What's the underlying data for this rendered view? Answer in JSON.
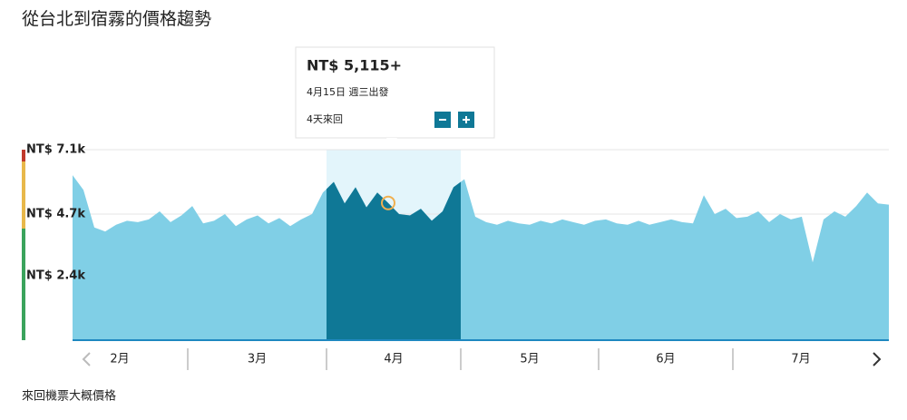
{
  "header": {
    "title": "從台北到宿霧的價格趨勢"
  },
  "chart_data": {
    "type": "area",
    "values": [
      6150,
      5600,
      4200,
      4050,
      4300,
      4450,
      4400,
      4500,
      4800,
      4400,
      4650,
      5000,
      4350,
      4450,
      4700,
      4250,
      4500,
      4650,
      4350,
      4550,
      4250,
      4500,
      4700,
      5500,
      5900,
      5100,
      5700,
      4950,
      5500,
      5115,
      4700,
      4650,
      4900,
      4450,
      4800,
      5700,
      6000,
      4600,
      4400,
      4300,
      4450,
      4350,
      4300,
      4450,
      4350,
      4500,
      4400,
      4300,
      4450,
      4500,
      4350,
      4300,
      4450,
      4300,
      4400,
      4500,
      4400,
      4350,
      5400,
      4700,
      4900,
      4550,
      4600,
      4800,
      4400,
      4700,
      4500,
      4600,
      2900,
      4500,
      4800,
      4600,
      5000,
      5500,
      5100,
      5050
    ],
    "color": "#80cfe6",
    "highlight_color": "#0f7896",
    "months": [
      "2月",
      "3月",
      "4月",
      "5月",
      "6月",
      "7月"
    ],
    "highlight_month": "4月",
    "ylim": [
      0,
      7100
    ],
    "yticks": [
      {
        "value": 2400,
        "label": "NT$ 2.4k"
      },
      {
        "value": 4700,
        "label": "NT$ 4.7k"
      },
      {
        "value": 7100,
        "label": "NT$ 7.1k"
      }
    ],
    "grid": true
  },
  "tooltip": {
    "price": "NT$ 5,115+",
    "date": "4月15日 週三出發",
    "trip": "4天來回"
  },
  "footer": {
    "note": "來回機票大概價格"
  }
}
